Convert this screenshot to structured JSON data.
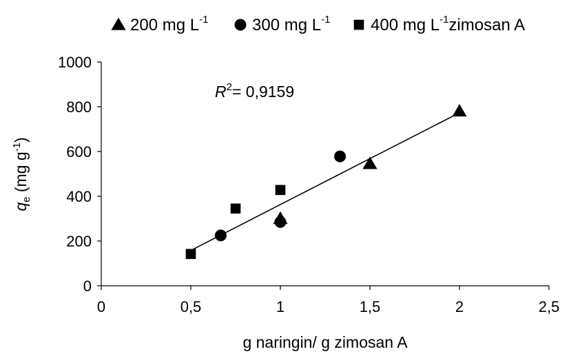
{
  "chart_data": {
    "type": "scatter",
    "xlabel": "g naringin/ g zimosan A",
    "ylabel_main": "q",
    "ylabel_sub": "e",
    "ylabel_unit_pre": " (mg g",
    "ylabel_unit_sup": "-1",
    "ylabel_unit_post": ")",
    "xlim": [
      0,
      2.5
    ],
    "ylim": [
      0,
      1000
    ],
    "x_ticks": [
      {
        "value": 0,
        "label": "0"
      },
      {
        "value": 0.5,
        "label": "0,5"
      },
      {
        "value": 1,
        "label": "1"
      },
      {
        "value": 1.5,
        "label": "1,5"
      },
      {
        "value": 2,
        "label": "2"
      },
      {
        "value": 2.5,
        "label": "2,5"
      }
    ],
    "y_ticks": [
      {
        "value": 0,
        "label": "0"
      },
      {
        "value": 200,
        "label": "200"
      },
      {
        "value": 400,
        "label": "400"
      },
      {
        "value": 600,
        "label": "600"
      },
      {
        "value": 800,
        "label": "800"
      },
      {
        "value": 1000,
        "label": "1000"
      }
    ],
    "grid": false,
    "legend_position": "top",
    "series": [
      {
        "name": "200 mg L",
        "name_sup": "-1",
        "marker": "triangle",
        "points": [
          [
            1.0,
            300
          ],
          [
            1.5,
            545
          ],
          [
            2.0,
            780
          ]
        ]
      },
      {
        "name": "300 mg L",
        "name_sup": "-1",
        "marker": "circle",
        "points": [
          [
            0.667,
            225
          ],
          [
            1.0,
            285
          ],
          [
            1.333,
            578
          ]
        ]
      },
      {
        "name": "400 mg L",
        "name_sup": "-1",
        "name_post": "zimosan A",
        "marker": "square",
        "points": [
          [
            0.5,
            142
          ],
          [
            0.75,
            345
          ],
          [
            1.0,
            428
          ]
        ]
      }
    ],
    "trendline": {
      "x": [
        0.5,
        2.0
      ],
      "y": [
        158,
        773
      ]
    },
    "annotation": {
      "r": "R",
      "sup": "2",
      "text": "= 0,9159"
    }
  }
}
